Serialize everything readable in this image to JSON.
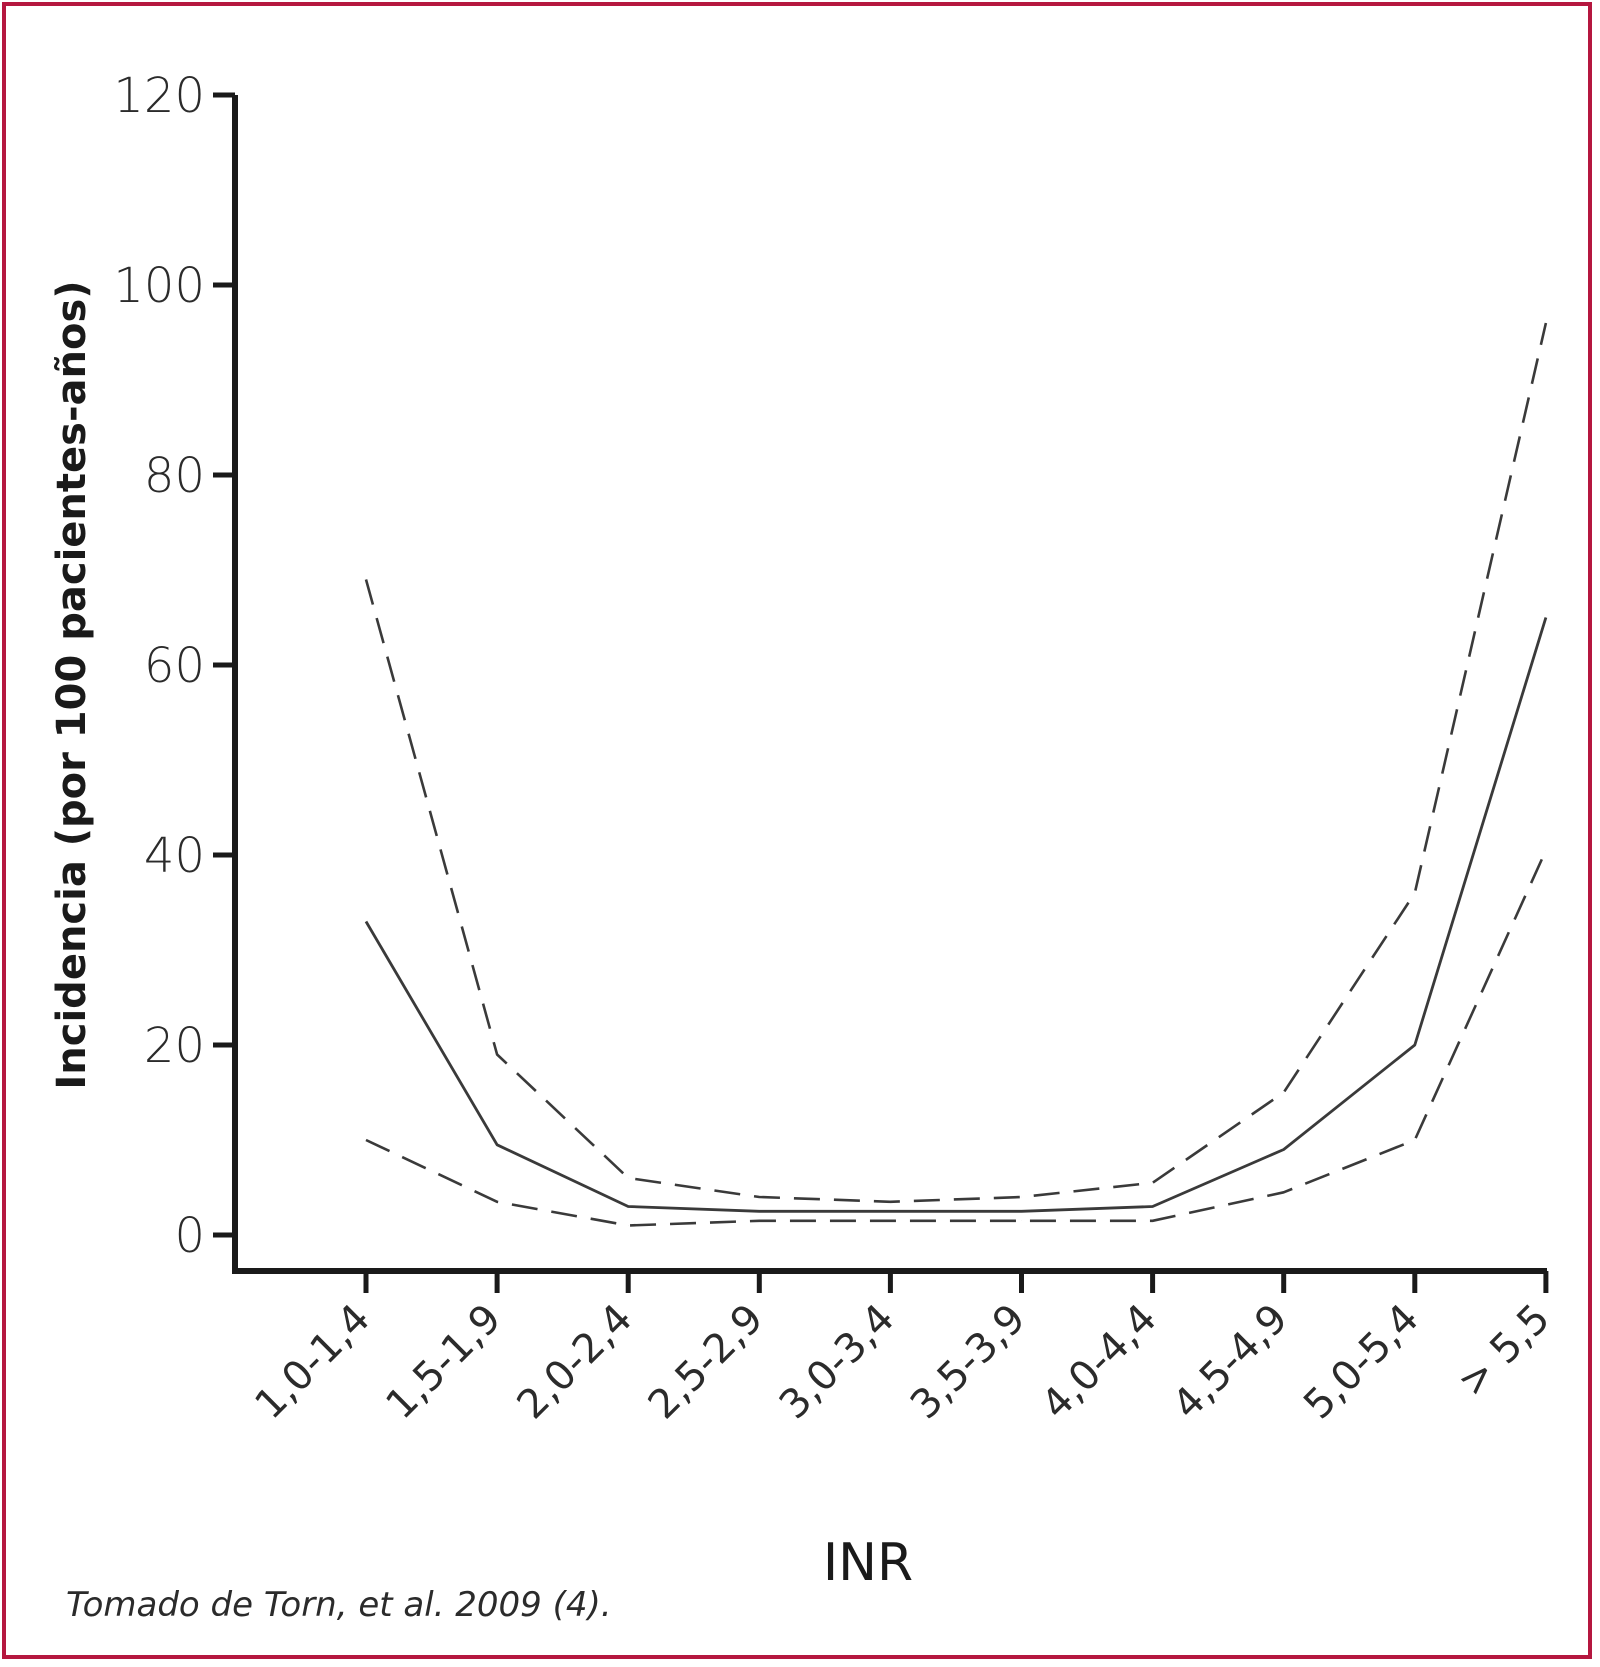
{
  "chart_data": {
    "type": "line",
    "xlabel": "INR",
    "ylabel": "Incidencia (por 100 pacientes-años)",
    "ylim": [
      0,
      120
    ],
    "yticks": [
      0,
      20,
      40,
      60,
      80,
      100,
      120
    ],
    "categories": [
      "1,0-1,4",
      "1,5-1,9",
      "2,0-2,4",
      "2,5-2,9",
      "3,0-3,4",
      "3,5-3,9",
      "4,0-4,4",
      "4,5-4,9",
      "5,0-5,4",
      "> 5,5"
    ],
    "series": [
      {
        "values": [
          69,
          19,
          6,
          4,
          3.5,
          4,
          5.5,
          15,
          36,
          96
        ],
        "style": "dashed"
      },
      {
        "values": [
          33,
          9.5,
          3,
          2.5,
          2.5,
          2.5,
          3,
          9,
          20,
          65
        ],
        "style": "solid"
      },
      {
        "values": [
          10,
          3.5,
          1,
          1.5,
          1.5,
          1.5,
          1.5,
          4.5,
          10,
          40.5
        ],
        "style": "dashed"
      }
    ],
    "grid": false,
    "line_color": "#3a3a3a",
    "frame_color": "#b5173f"
  },
  "source": "Tomado de Torn, et al. 2009 (4)."
}
